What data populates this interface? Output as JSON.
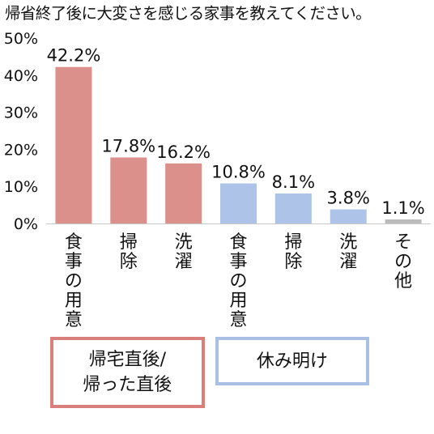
{
  "chart_data": {
    "type": "bar",
    "title": "帰省終了後に大変さを感じる家事を教えてください。",
    "xlabel": "",
    "ylabel": "",
    "ylim": [
      0,
      50
    ],
    "yticks": [
      "0%",
      "10%",
      "20%",
      "30%",
      "40%",
      "50%"
    ],
    "ytick_values": [
      0,
      10,
      20,
      30,
      40,
      50
    ],
    "grid": false,
    "categories": [
      "食事の用意",
      "掃除",
      "洗濯",
      "食事の用意",
      "掃除",
      "洗濯",
      "その他"
    ],
    "values": [
      42.2,
      17.8,
      16.2,
      10.8,
      8.1,
      3.8,
      1.1
    ],
    "value_labels": [
      "42.2%",
      "17.8%",
      "16.2%",
      "10.8%",
      "8.1%",
      "3.8%",
      "1.1%"
    ],
    "bar_colors": [
      "#dc908c",
      "#dc908c",
      "#dc908c",
      "#aec3e8",
      "#aec3e8",
      "#aec3e8",
      "#bcbcbc"
    ],
    "groups": [
      {
        "lines": [
          "帰宅直後/",
          "帰った直後"
        ],
        "color": "#d9807c",
        "bars": [
          0,
          1,
          2
        ]
      },
      {
        "lines": [
          "休み明け"
        ],
        "color": "#a9bfe4",
        "bars": [
          3,
          4,
          5
        ]
      }
    ]
  }
}
